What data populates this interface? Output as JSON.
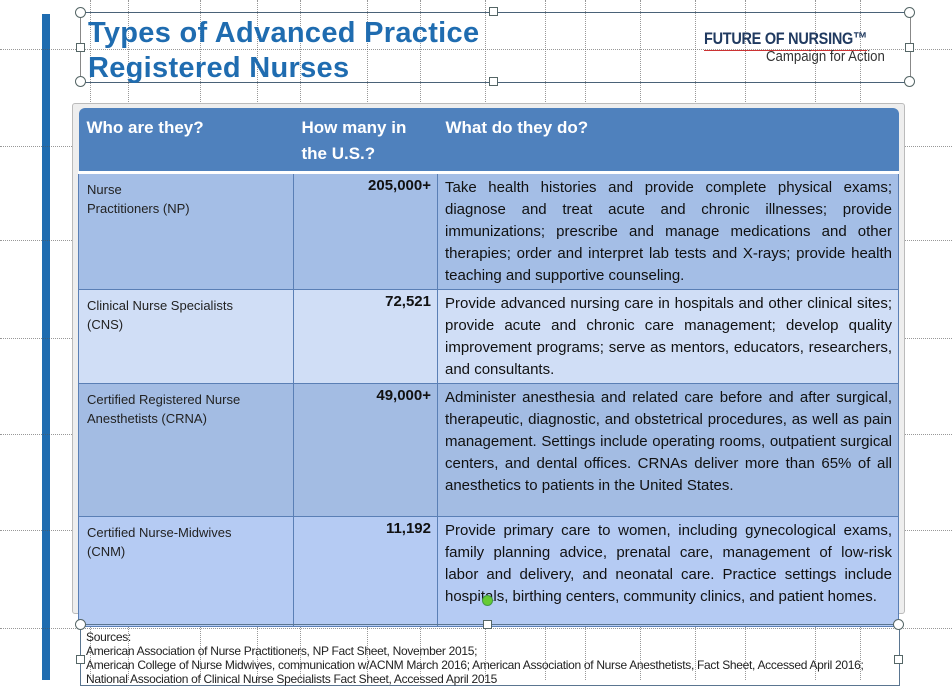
{
  "slide": {
    "title_line1": "Types of Advanced Practice",
    "title_line2": "Registered Nurses",
    "logo_line1": "FUTURE OF NURSING™",
    "logo_line2": "Campaign for Action"
  },
  "table": {
    "headers": [
      "Who are they?",
      "How many in the U.S.?",
      "What do they do?"
    ],
    "rows": [
      {
        "who": "Nurse Practitioners (NP)",
        "count": "205,000+",
        "what": "Take health histories and provide complete physical exams; diagnose and treat acute and chronic illnesses; provide immunizations; prescribe and manage medications and other therapies; order and interpret lab tests and X-rays; provide health teaching and supportive counseling."
      },
      {
        "who": "Clinical Nurse Specialists (CNS)",
        "count": "72,521",
        "what": "Provide advanced nursing care in hospitals and other clinical sites; provide acute and chronic care management; develop quality improvement programs; serve as mentors, educators, researchers, and consultants."
      },
      {
        "who": "Certified Registered Nurse Anesthetists (CRNA)",
        "count": "49,000+",
        "what": "Administer anesthesia and related care before and after surgical, therapeutic, diagnostic, and obstetrical procedures, as well as pain management. Settings include operating rooms, outpatient surgical centers, and dental offices. CRNAs deliver more than 65% of all anesthetics to patients in the United States."
      },
      {
        "who": "Certified Nurse-Midwives (CNM)",
        "count": "11,192",
        "what": "Provide primary care to women, including gynecological exams, family planning advice, prenatal care, management of low-risk labor and delivery, and neonatal care. Practice settings include hospitals, birthing centers, community clinics, and patient homes."
      }
    ]
  },
  "sources": {
    "label": "Sources:",
    "line1": "American Association of Nurse Practitioners, NP Fact Sheet, November 2015;",
    "line2": "American College of Nurse Midwives, communication w/ACNM March 2016; American Association of Nurse Anesthetists, Fact Sheet, Accessed April 2016; National Association of Clinical Nurse Specialists Fact Sheet, Accessed April 2015"
  },
  "colors": {
    "accent": "#1f6cb0",
    "header": "#4f81bd"
  }
}
